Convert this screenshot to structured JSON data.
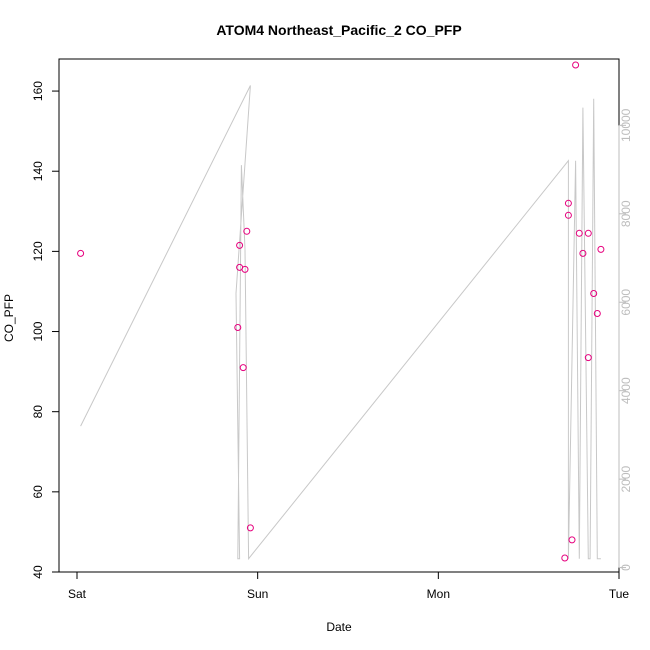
{
  "chart_data": {
    "type": "scatter",
    "title": "ATOM4 Northeast_Pacific_2 CO_PFP",
    "xlabel": "Date",
    "ylabel": "CO_PFP",
    "x_ticks": [
      "Sat",
      "Sun",
      "Mon",
      "Tue"
    ],
    "xlim_days": [
      0,
      3
    ],
    "ylim": [
      40,
      168
    ],
    "y_ticks": [
      40,
      60,
      80,
      100,
      120,
      140,
      160
    ],
    "y2lim": [
      -100,
      11500
    ],
    "y2_ticks": [
      0,
      2000,
      4000,
      6000,
      8000,
      10000
    ],
    "grid": false,
    "colors": {
      "points": "#e6007e",
      "line": "#c8c8c8",
      "right_axis": "#bdbdbd"
    },
    "series": [
      {
        "kind": "points",
        "axis": "left",
        "x_days": [
          0.02,
          0.89,
          0.9,
          0.9,
          0.92,
          0.94,
          0.93,
          0.96,
          2.7,
          2.72,
          2.72,
          2.74,
          2.76,
          2.78,
          2.8,
          2.83,
          2.83,
          2.86,
          2.88,
          2.9
        ],
        "values": [
          119.5,
          101,
          121.5,
          116,
          91,
          125,
          115.5,
          51,
          43.5,
          132,
          129,
          48,
          166.5,
          124.5,
          119.5,
          124.5,
          93.5,
          109.5,
          104.5,
          120.5
        ]
      },
      {
        "kind": "line",
        "axis": "right",
        "x_days": [
          0.02,
          0.96,
          0.88,
          0.9,
          0.89,
          0.91,
          0.93,
          0.95,
          2.72,
          2.72,
          2.76,
          2.78,
          2.8,
          2.83,
          2.84,
          2.86,
          2.88,
          2.9
        ],
        "values": [
          3200,
          10900,
          6200,
          200,
          200,
          9100,
          7200,
          200,
          9200,
          200,
          9200,
          200,
          10400,
          200,
          200,
          10600,
          200,
          200
        ]
      }
    ]
  }
}
